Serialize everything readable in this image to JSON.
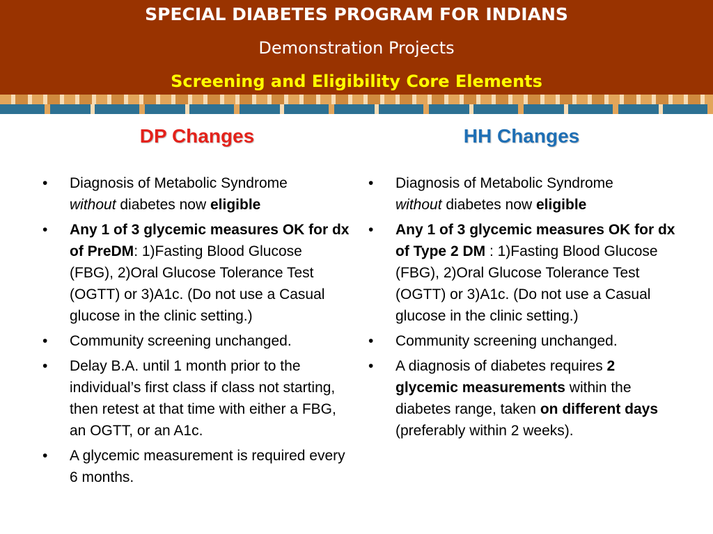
{
  "header": {
    "title": "SPECIAL DIABETES PROGRAM FOR INDIANS",
    "subtitle": "Demonstration Projects",
    "subtitle2": "Screening and Eligibility Core Elements"
  },
  "colors": {
    "header_bg": "#993300",
    "subtitle2": "#ffff00",
    "dp_heading": "#e4221b",
    "hh_heading": "#1e6fb5"
  },
  "bullet_symbol": "•",
  "left": {
    "heading": "DP Changes",
    "items": [
      {
        "a": "Diagnosis of Metabolic Syndrome",
        "b": "without",
        "c": " diabetes now ",
        "d": "eligible"
      },
      {
        "a": "Any 1 of 3 glycemic measures OK for dx of PreDM",
        "b": ": 1)Fasting Blood Glucose (FBG), 2)Oral Glucose Tolerance Test (OGTT) or 3)A1c. (Do not use a Casual glucose in the clinic setting.)"
      },
      {
        "text": "Community screening unchanged."
      },
      {
        "text": "Delay B.A. until 1 month prior to the individual’s first class if class not starting, then retest at that time with either a FBG, an OGTT, or an A1c."
      },
      {
        "text": "A glycemic measurement is required every 6 months."
      }
    ]
  },
  "right": {
    "heading": "HH Changes",
    "items": [
      {
        "a": "Diagnosis of Metabolic Syndrome",
        "b": "without",
        "c": " diabetes now ",
        "d": "eligible"
      },
      {
        "a": "Any 1 of 3 glycemic measures OK for dx of Type 2 DM",
        "b": " : 1)Fasting Blood Glucose (FBG), 2)Oral Glucose Tolerance Test (OGTT) or 3)A1c. (Do not use a Casual glucose in the clinic setting.)"
      },
      {
        "text": "Community screening unchanged."
      },
      {
        "a": "A diagnosis of diabetes requires ",
        "b": "2 glycemic measurements",
        "c": " within the diabetes range, taken ",
        "d": "on different days",
        "e": " (preferably within 2 weeks)."
      }
    ]
  }
}
